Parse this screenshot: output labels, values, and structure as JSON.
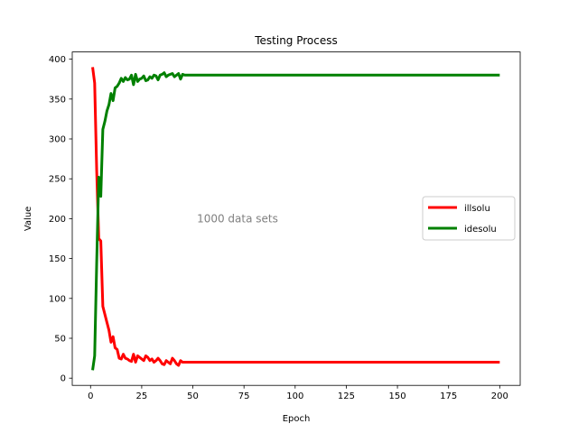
{
  "chart_data": {
    "type": "line",
    "title": "Testing Process",
    "xlabel": "Epoch",
    "ylabel": "Value",
    "xlim": [
      -8.95,
      210
    ],
    "ylim": [
      -9.05,
      409.05
    ],
    "xticks": [
      0,
      25,
      50,
      75,
      100,
      125,
      150,
      175,
      200
    ],
    "yticks": [
      0,
      50,
      100,
      150,
      200,
      250,
      300,
      350,
      400
    ],
    "grid": false,
    "legend": {
      "placement": "center-right"
    },
    "annotations": [
      {
        "text": "1000 data sets",
        "x": 52,
        "y": 200,
        "color": "#808080"
      }
    ],
    "series": [
      {
        "name": "illsolu",
        "color": "#ff0000",
        "x": [
          1,
          2,
          3,
          4,
          5,
          6,
          7,
          8,
          9,
          10,
          11,
          12,
          13,
          14,
          15,
          16,
          17,
          18,
          19,
          20,
          21,
          22,
          23,
          24,
          25,
          26,
          27,
          28,
          29,
          30,
          31,
          32,
          33,
          34,
          35,
          36,
          37,
          38,
          39,
          40,
          41,
          42,
          43,
          44,
          45,
          46,
          47,
          48,
          200
        ],
        "y": [
          390,
          370,
          260,
          175,
          172,
          90,
          80,
          70,
          60,
          45,
          52,
          38,
          36,
          25,
          24,
          30,
          25,
          24,
          22,
          21,
          30,
          20,
          28,
          26,
          24,
          22,
          28,
          26,
          22,
          24,
          20,
          22,
          25,
          22,
          18,
          17,
          22,
          20,
          18,
          25,
          22,
          18,
          16,
          22,
          20,
          20,
          20,
          20,
          20
        ]
      },
      {
        "name": "idesolu",
        "color": "#008000",
        "x": [
          1,
          2,
          3,
          4,
          5,
          6,
          7,
          8,
          9,
          10,
          11,
          12,
          13,
          14,
          15,
          16,
          17,
          18,
          19,
          20,
          21,
          22,
          23,
          24,
          25,
          26,
          27,
          28,
          29,
          30,
          31,
          32,
          33,
          34,
          35,
          36,
          37,
          38,
          39,
          40,
          41,
          42,
          43,
          44,
          45,
          46,
          47,
          48,
          200
        ],
        "y": [
          10,
          28,
          145,
          252,
          228,
          312,
          322,
          335,
          343,
          357,
          348,
          364,
          366,
          370,
          376,
          372,
          377,
          374,
          375,
          380,
          368,
          381,
          372,
          375,
          376,
          379,
          373,
          374,
          378,
          376,
          380,
          379,
          374,
          380,
          381,
          383,
          378,
          380,
          381,
          382,
          378,
          380,
          382,
          375,
          381,
          380,
          380,
          380,
          380
        ]
      }
    ]
  }
}
